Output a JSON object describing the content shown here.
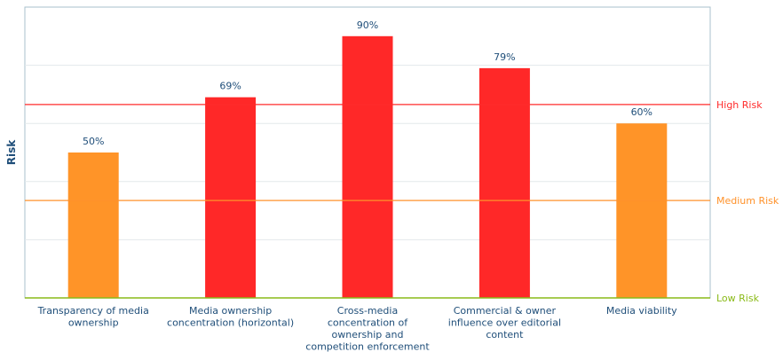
{
  "chart_data": {
    "type": "bar",
    "categories": [
      [
        "Transparency of media",
        "ownership"
      ],
      [
        "Media ownership",
        "concentration (horizontal)"
      ],
      [
        "Cross-media",
        "concentration of",
        "ownership and",
        "competition enforcement"
      ],
      [
        "Commercial & owner",
        "influence over editorial",
        "content"
      ],
      [
        "Media viability"
      ]
    ],
    "values": [
      50,
      69,
      90,
      79,
      60
    ],
    "value_labels": [
      "50%",
      "69%",
      "90%",
      "79%",
      "60%"
    ],
    "risk_levels": [
      "medium",
      "high",
      "high",
      "high",
      "medium"
    ],
    "ylabel": "Risk",
    "ylim": [
      0,
      100
    ],
    "grid": "horizontal",
    "thresholds": [
      {
        "label": "High Risk",
        "value": 66.5,
        "color": "#ff2b2b"
      },
      {
        "label": "Medium Risk",
        "value": 33.5,
        "color": "#ff922b"
      },
      {
        "label": "Low Risk",
        "value": 0,
        "color": "#8aba18"
      }
    ],
    "colors": {
      "high": "#ff2828",
      "medium": "#ff9428",
      "axis_text": "#1f4e79",
      "frame": "#a9c0cc",
      "grid": "#e3e8ec"
    }
  }
}
